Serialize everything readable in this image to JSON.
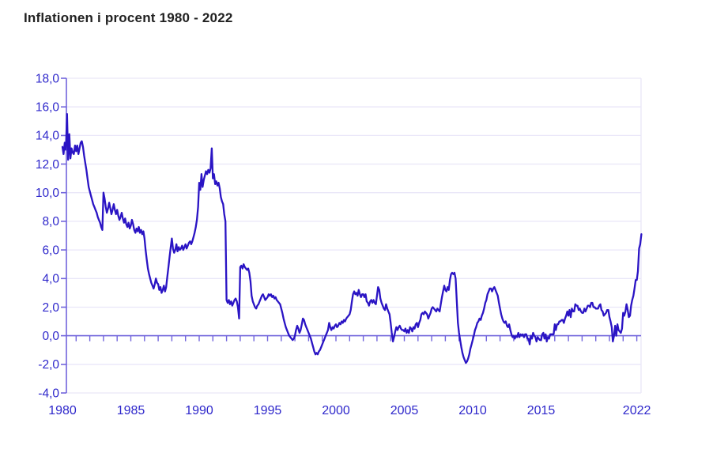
{
  "page": {
    "title": "Inflationen i procent 1980 - 2022"
  },
  "chart_data": {
    "type": "line",
    "title": "Inflationen i procent 1980 - 2022",
    "ylabel": "",
    "xlabel": "",
    "unit": "percent",
    "grid": true,
    "legend_position": "none",
    "y_axis": {
      "min": -4.0,
      "max": 18.0,
      "tick_step": 2.0,
      "tick_values": [
        18,
        16,
        14,
        12,
        10,
        8,
        6,
        4,
        2,
        0,
        -2,
        -4
      ],
      "tick_labels": [
        "18,0",
        "16,0",
        "14,0",
        "12,0",
        "10,0",
        "8,0",
        "6,0",
        "4,0",
        "2,0",
        "0,0",
        "-2,0",
        "-4,0"
      ]
    },
    "x_axis": {
      "start_year": 1980,
      "end_year": 2022.4,
      "tick_years": [
        1980,
        1985,
        1990,
        1995,
        2000,
        2005,
        2010,
        2015,
        2022
      ],
      "tick_labels": [
        "1980",
        "1985",
        "1990",
        "1995",
        "2000",
        "2005",
        "2010",
        "2015",
        "2022"
      ],
      "minor_tick_every_year": true
    },
    "series": [
      {
        "name": "Inflationen i procent",
        "start": "1980-01",
        "frequency": "monthly",
        "values": [
          13.2,
          12.7,
          13.5,
          13.0,
          15.5,
          12.3,
          14.1,
          12.4,
          13.1,
          12.8,
          12.7,
          13.3,
          12.9,
          13.3,
          12.7,
          13.1,
          13.5,
          13.6,
          13.2,
          12.6,
          12.1,
          11.6,
          11.0,
          10.4,
          10.1,
          9.8,
          9.5,
          9.2,
          9.0,
          8.8,
          8.6,
          8.3,
          8.1,
          7.9,
          7.6,
          7.4,
          10.0,
          9.6,
          9.0,
          8.6,
          8.9,
          9.3,
          8.9,
          8.5,
          8.8,
          9.2,
          8.8,
          8.5,
          8.8,
          8.4,
          8.1,
          8.3,
          8.6,
          8.2,
          7.9,
          8.2,
          7.8,
          7.6,
          7.9,
          7.5,
          7.7,
          8.1,
          7.8,
          7.4,
          7.2,
          7.5,
          7.3,
          7.6,
          7.2,
          7.4,
          7.1,
          7.3,
          6.8,
          6.0,
          5.3,
          4.7,
          4.3,
          4.0,
          3.7,
          3.5,
          3.3,
          3.6,
          4.0,
          3.7,
          3.6,
          3.2,
          3.4,
          3.0,
          3.2,
          3.5,
          3.1,
          3.4,
          4.1,
          4.8,
          5.5,
          6.2,
          6.8,
          6.1,
          5.8,
          6.0,
          6.4,
          5.9,
          6.2,
          6.0,
          6.1,
          6.3,
          6.0,
          6.2,
          6.4,
          6.1,
          6.3,
          6.5,
          6.6,
          6.4,
          6.6,
          6.9,
          7.2,
          7.6,
          8.1,
          9.0,
          10.7,
          10.2,
          11.3,
          10.4,
          10.9,
          11.2,
          11.5,
          11.3,
          11.6,
          11.4,
          11.7,
          13.1,
          11.0,
          11.3,
          10.6,
          10.8,
          10.5,
          10.7,
          10.3,
          9.7,
          9.4,
          9.2,
          8.5,
          8.0,
          2.5,
          2.3,
          2.5,
          2.2,
          2.4,
          2.1,
          2.3,
          2.5,
          2.6,
          2.4,
          2.0,
          1.2,
          4.8,
          4.9,
          4.7,
          5.0,
          4.8,
          4.7,
          4.6,
          4.7,
          4.4,
          3.8,
          2.8,
          2.4,
          2.2,
          2.0,
          1.9,
          2.1,
          2.2,
          2.4,
          2.6,
          2.8,
          2.9,
          2.7,
          2.5,
          2.6,
          2.7,
          2.9,
          2.8,
          2.9,
          2.7,
          2.8,
          2.6,
          2.7,
          2.5,
          2.4,
          2.3,
          2.2,
          1.9,
          1.6,
          1.2,
          0.9,
          0.6,
          0.4,
          0.2,
          0.0,
          -0.1,
          -0.2,
          -0.3,
          -0.2,
          0.0,
          0.4,
          0.7,
          0.5,
          0.2,
          0.4,
          0.8,
          1.2,
          1.1,
          0.8,
          0.6,
          0.4,
          0.2,
          0.0,
          -0.2,
          -0.5,
          -0.8,
          -1.1,
          -1.3,
          -1.2,
          -1.3,
          -1.1,
          -1.0,
          -0.8,
          -0.6,
          -0.4,
          -0.2,
          0.0,
          0.2,
          0.4,
          0.9,
          0.6,
          0.4,
          0.6,
          0.5,
          0.7,
          0.8,
          0.6,
          0.7,
          0.9,
          0.8,
          1.0,
          0.9,
          1.1,
          1.0,
          1.2,
          1.3,
          1.4,
          1.5,
          1.8,
          2.4,
          2.9,
          3.1,
          2.9,
          3.0,
          2.8,
          3.2,
          2.9,
          2.7,
          2.9,
          2.9,
          2.7,
          2.9,
          2.4,
          2.3,
          2.1,
          2.4,
          2.5,
          2.3,
          2.5,
          2.3,
          2.2,
          2.8,
          3.4,
          3.2,
          2.6,
          2.3,
          2.1,
          1.9,
          1.8,
          2.2,
          1.9,
          1.7,
          1.5,
          0.9,
          0.2,
          -0.4,
          -0.1,
          0.3,
          0.6,
          0.4,
          0.6,
          0.7,
          0.5,
          0.4,
          0.4,
          0.3,
          0.5,
          0.2,
          0.4,
          0.2,
          0.6,
          0.5,
          0.3,
          0.6,
          0.5,
          0.8,
          0.9,
          0.6,
          0.9,
          1.1,
          1.5,
          1.6,
          1.5,
          1.7,
          1.6,
          1.5,
          1.2,
          1.4,
          1.6,
          1.9,
          2.0,
          1.9,
          1.8,
          1.7,
          1.9,
          1.8,
          1.7,
          2.2,
          2.7,
          3.1,
          3.5,
          3.2,
          3.1,
          3.4,
          3.2,
          3.9,
          4.3,
          4.4,
          4.3,
          4.4,
          4.0,
          2.5,
          0.9,
          0.2,
          -0.3,
          -0.8,
          -1.2,
          -1.5,
          -1.7,
          -1.9,
          -1.8,
          -1.6,
          -1.3,
          -0.9,
          -0.6,
          -0.3,
          0.0,
          0.4,
          0.6,
          0.9,
          1.0,
          1.2,
          1.1,
          1.4,
          1.6,
          1.9,
          2.3,
          2.5,
          2.9,
          3.1,
          3.3,
          3.3,
          3.1,
          3.3,
          3.4,
          3.2,
          3.0,
          2.8,
          2.3,
          1.9,
          1.5,
          1.2,
          1.0,
          0.9,
          1.0,
          0.7,
          0.6,
          0.8,
          0.4,
          0.1,
          -0.1,
          0.0,
          -0.2,
          0.0,
          -0.1,
          0.2,
          -0.1,
          0.1,
          0.0,
          0.1,
          -0.1,
          0.1,
          0.1,
          -0.2,
          -0.2,
          -0.6,
          0.0,
          -0.2,
          0.2,
          0.0,
          -0.1,
          -0.4,
          -0.1,
          -0.2,
          -0.3,
          -0.3,
          0.1,
          0.2,
          -0.2,
          0.1,
          -0.4,
          -0.1,
          -0.2,
          0.1,
          0.1,
          0.1,
          0.1,
          0.8,
          0.4,
          0.8,
          0.8,
          1.0,
          1.0,
          1.1,
          1.1,
          0.9,
          1.2,
          1.4,
          1.7,
          1.4,
          1.8,
          1.3,
          1.9,
          1.7,
          1.7,
          2.2,
          2.1,
          2.1,
          1.8,
          1.9,
          1.7,
          1.6,
          1.6,
          1.9,
          1.7,
          1.9,
          2.1,
          2.1,
          2.0,
          2.3,
          2.3,
          2.0,
          2.0,
          1.9,
          1.9,
          1.9,
          2.1,
          2.2,
          1.8,
          1.7,
          1.4,
          1.5,
          1.6,
          1.8,
          1.8,
          1.3,
          1.0,
          0.6,
          -0.4,
          0.0,
          0.7,
          0.0,
          0.8,
          0.4,
          0.3,
          0.2,
          0.5,
          1.6,
          1.4,
          1.7,
          2.2,
          1.8,
          1.3,
          1.4,
          2.1,
          2.5,
          2.8,
          3.3,
          3.9,
          3.9,
          4.5,
          6.1,
          6.4,
          7.1
        ]
      }
    ],
    "colors": {
      "line": "#2a14c4",
      "axis": "#7164dc",
      "grid": "#e9e6f8",
      "tick_label": "#2e27cb",
      "title": "#212121"
    }
  }
}
